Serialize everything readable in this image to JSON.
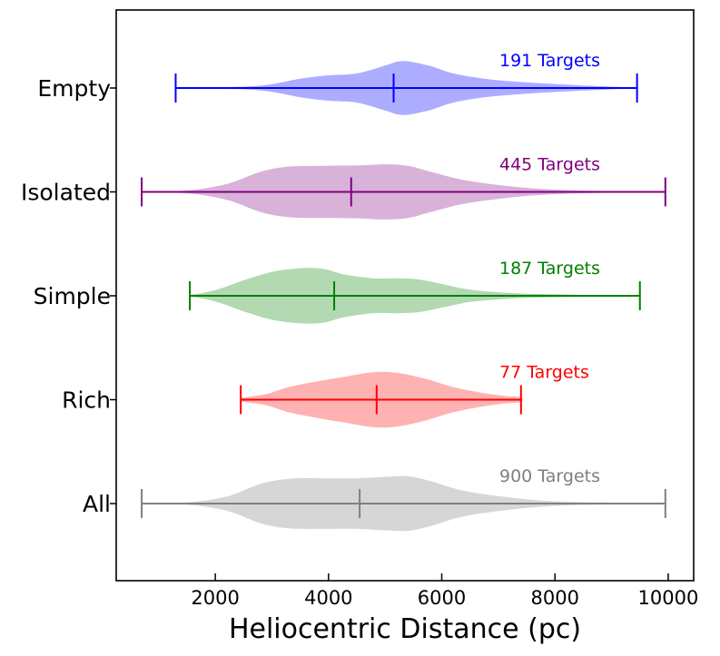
{
  "chart_data": {
    "type": "violin",
    "orientation": "horizontal",
    "xlabel": "Heliocentric Distance (pc)",
    "xlim": [
      250,
      10450
    ],
    "xticks": [
      "2000",
      "4000",
      "6000",
      "8000",
      "10000"
    ],
    "categories": [
      "Empty",
      "Isolated",
      "Simple",
      "Rich",
      "All"
    ],
    "series": [
      {
        "name": "Empty",
        "count_label": "191 Targets",
        "color": "#0000ff",
        "fill": "#0000ff",
        "fill_opacity": 0.32,
        "min": 1300,
        "median": 5150,
        "max": 9450,
        "density": [
          [
            1300,
            0.01
          ],
          [
            2500,
            0.05
          ],
          [
            3000,
            0.14
          ],
          [
            3500,
            0.33
          ],
          [
            4000,
            0.45
          ],
          [
            4500,
            0.52
          ],
          [
            5000,
            0.8
          ],
          [
            5200,
            0.93
          ],
          [
            5400,
            0.95
          ],
          [
            5800,
            0.78
          ],
          [
            6200,
            0.52
          ],
          [
            6800,
            0.32
          ],
          [
            7500,
            0.2
          ],
          [
            8200,
            0.12
          ],
          [
            9000,
            0.05
          ],
          [
            9450,
            0.01
          ]
        ]
      },
      {
        "name": "Isolated",
        "count_label": "445 Targets",
        "color": "#800080",
        "fill": "#800080",
        "fill_opacity": 0.3,
        "min": 700,
        "median": 4400,
        "max": 9950,
        "density": [
          [
            700,
            0.01
          ],
          [
            1500,
            0.05
          ],
          [
            2200,
            0.28
          ],
          [
            2800,
            0.72
          ],
          [
            3300,
            0.9
          ],
          [
            3900,
            0.93
          ],
          [
            4500,
            0.94
          ],
          [
            5000,
            0.98
          ],
          [
            5400,
            0.93
          ],
          [
            5800,
            0.72
          ],
          [
            6400,
            0.42
          ],
          [
            7200,
            0.2
          ],
          [
            8000,
            0.08
          ],
          [
            9000,
            0.03
          ],
          [
            9950,
            0.01
          ]
        ]
      },
      {
        "name": "Simple",
        "count_label": "187 Targets",
        "color": "#008000",
        "fill": "#008000",
        "fill_opacity": 0.3,
        "min": 1550,
        "median": 4100,
        "max": 9500,
        "density": [
          [
            1550,
            0.02
          ],
          [
            2000,
            0.2
          ],
          [
            2500,
            0.55
          ],
          [
            3000,
            0.85
          ],
          [
            3500,
            0.98
          ],
          [
            3900,
            0.96
          ],
          [
            4300,
            0.75
          ],
          [
            4800,
            0.62
          ],
          [
            5200,
            0.62
          ],
          [
            5600,
            0.58
          ],
          [
            6000,
            0.42
          ],
          [
            6500,
            0.22
          ],
          [
            7200,
            0.1
          ],
          [
            8000,
            0.05
          ],
          [
            9000,
            0.02
          ],
          [
            9500,
            0.01
          ]
        ]
      },
      {
        "name": "Rich",
        "count_label": "77 Targets",
        "color": "#ff0000",
        "fill": "#ff0000",
        "fill_opacity": 0.3,
        "min": 2450,
        "median": 4850,
        "max": 7400,
        "density": [
          [
            2450,
            0.06
          ],
          [
            2900,
            0.2
          ],
          [
            3300,
            0.45
          ],
          [
            3800,
            0.65
          ],
          [
            4300,
            0.82
          ],
          [
            4800,
            0.98
          ],
          [
            5200,
            0.96
          ],
          [
            5700,
            0.75
          ],
          [
            6200,
            0.45
          ],
          [
            6700,
            0.25
          ],
          [
            7100,
            0.14
          ],
          [
            7400,
            0.08
          ]
        ]
      },
      {
        "name": "All",
        "count_label": "900 Targets",
        "color": "#808080",
        "fill": "#b4b4b4",
        "fill_opacity": 0.55,
        "min": 700,
        "median": 4550,
        "max": 9950,
        "density": [
          [
            700,
            0.01
          ],
          [
            1500,
            0.04
          ],
          [
            2200,
            0.25
          ],
          [
            2800,
            0.7
          ],
          [
            3300,
            0.88
          ],
          [
            3900,
            0.9
          ],
          [
            4500,
            0.9
          ],
          [
            5000,
            0.95
          ],
          [
            5400,
            0.97
          ],
          [
            5800,
            0.8
          ],
          [
            6400,
            0.45
          ],
          [
            7200,
            0.22
          ],
          [
            8000,
            0.08
          ],
          [
            9000,
            0.03
          ],
          [
            9950,
            0.01
          ]
        ]
      }
    ]
  }
}
